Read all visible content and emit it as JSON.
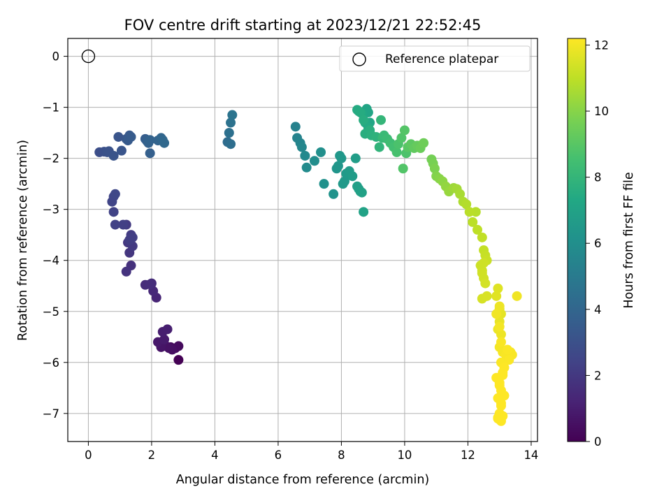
{
  "chart_data": {
    "type": "scatter",
    "title": "FOV centre drift starting at 2023/12/21 22:52:45",
    "xlabel": "Angular distance from reference (arcmin)",
    "ylabel": "Rotation from reference (arcmin)",
    "xlim": [
      -0.65,
      14.2
    ],
    "ylim": [
      -7.55,
      0.35
    ],
    "xticks": [
      0,
      2,
      4,
      6,
      8,
      10,
      12,
      14
    ],
    "yticks": [
      0,
      -1,
      -2,
      -3,
      -4,
      -5,
      -6,
      -7
    ],
    "xtick_labels": [
      "0",
      "2",
      "4",
      "6",
      "8",
      "10",
      "12",
      "14"
    ],
    "ytick_labels": [
      "0",
      "−1",
      "−2",
      "−3",
      "−4",
      "−5",
      "−6",
      "−7"
    ],
    "grid": true,
    "legend": {
      "position": "top-right",
      "entries": [
        "Reference platepar"
      ]
    },
    "reference_point": {
      "x": 0,
      "y": 0
    },
    "colorbar": {
      "label": "Hours from first FF file",
      "colormap": "viridis",
      "min": 0,
      "max": 12.2,
      "ticks": [
        0,
        2,
        4,
        6,
        8,
        10,
        12
      ],
      "tick_labels": [
        "0",
        "2",
        "4",
        "6",
        "8",
        "10",
        "12"
      ]
    },
    "series": [
      {
        "x": [
          2.85,
          2.6,
          2.75,
          2.45,
          2.3,
          2.2,
          2.4,
          2.35,
          2.5,
          2.85,
          2.65,
          2.55,
          2.3,
          2.15,
          2.05,
          2.0,
          1.8,
          1.95,
          1.35,
          1.2,
          1.3,
          1.25,
          1.4,
          1.2,
          1.35,
          1.3,
          1.4,
          1.1,
          0.85,
          0.8,
          0.75,
          0.8,
          0.85,
          0.35,
          0.5,
          0.6,
          0.65,
          0.8,
          0.95,
          1.2,
          1.3,
          1.25,
          1.35,
          1.05,
          1.8,
          1.85,
          1.9,
          1.95,
          2.2,
          2.3,
          2.35,
          2.4,
          1.95,
          4.4,
          4.5,
          4.45,
          4.5,
          4.55,
          6.55,
          6.6,
          6.7,
          6.75,
          6.85,
          6.9,
          7.15,
          7.35,
          7.45,
          7.75,
          7.85,
          7.9,
          7.95,
          8.0,
          8.05,
          8.1,
          8.15,
          8.25,
          8.35,
          8.45,
          8.5,
          8.55,
          8.6,
          8.65,
          8.7,
          8.8,
          8.85,
          8.9,
          8.55,
          8.65,
          8.75,
          8.85,
          8.5,
          8.6,
          8.7,
          8.75,
          8.95,
          8.9,
          9.1,
          9.2,
          9.25,
          9.3,
          9.35,
          9.45,
          9.55,
          9.65,
          9.75,
          9.8,
          9.9,
          10.0,
          10.1,
          10.2,
          10.3,
          10.4,
          10.5,
          10.6,
          10.05,
          9.95,
          10.85,
          10.9,
          10.95,
          11.0,
          11.1,
          11.2,
          11.3,
          11.4,
          11.55,
          11.65,
          11.75,
          11.85,
          11.95,
          12.05,
          12.15,
          12.3,
          12.45,
          12.25,
          12.5,
          12.55,
          12.6,
          12.4,
          12.45,
          12.5,
          12.55,
          12.45,
          12.6,
          12.5,
          12.45,
          12.95,
          12.9,
          13.0,
          13.05,
          13.0,
          12.95,
          13.05,
          13.55,
          13.0,
          13.1,
          13.2,
          13.05,
          13.15,
          12.9,
          13.0,
          13.25,
          13.35,
          13.4,
          13.05,
          13.15,
          13.3,
          13.1,
          13.0,
          12.95,
          13.05,
          13.0,
          12.95,
          13.1,
          13.05,
          13.0,
          12.95,
          13.1,
          13.05,
          13.0,
          12.9,
          13.0,
          13.05
        ],
        "y": [
          -5.95,
          -5.7,
          -5.72,
          -5.68,
          -5.65,
          -5.6,
          -5.55,
          -5.4,
          -5.35,
          -5.68,
          -5.75,
          -5.72,
          -5.7,
          -4.73,
          -4.6,
          -4.45,
          -4.48,
          -4.47,
          -4.1,
          -4.22,
          -3.85,
          -3.65,
          -3.72,
          -3.3,
          -3.5,
          -3.6,
          -3.55,
          -3.3,
          -3.3,
          -3.05,
          -2.85,
          -2.75,
          -2.7,
          -1.88,
          -1.87,
          -1.88,
          -1.86,
          -1.95,
          -1.58,
          -1.62,
          -1.55,
          -1.65,
          -1.58,
          -1.85,
          -1.62,
          -1.66,
          -1.7,
          -1.64,
          -1.65,
          -1.6,
          -1.64,
          -1.7,
          -1.9,
          -1.68,
          -1.72,
          -1.5,
          -1.3,
          -1.15,
          -1.38,
          -1.6,
          -1.7,
          -1.78,
          -1.95,
          -2.18,
          -2.05,
          -1.88,
          -2.5,
          -2.7,
          -2.2,
          -2.15,
          -1.95,
          -2.0,
          -2.5,
          -2.45,
          -2.3,
          -2.25,
          -2.35,
          -2.0,
          -2.55,
          -2.6,
          -2.65,
          -2.67,
          -3.05,
          -1.03,
          -1.1,
          -1.3,
          -1.08,
          -1.12,
          -1.3,
          -1.4,
          -1.05,
          -1.1,
          -1.25,
          -1.52,
          -1.55,
          -1.45,
          -1.58,
          -1.78,
          -1.25,
          -1.6,
          -1.55,
          -1.62,
          -1.7,
          -1.78,
          -1.88,
          -1.72,
          -1.6,
          -1.45,
          -1.78,
          -1.72,
          -1.8,
          -1.75,
          -1.8,
          -1.7,
          -1.9,
          -2.2,
          -2.02,
          -2.1,
          -2.2,
          -2.35,
          -2.4,
          -2.45,
          -2.55,
          -2.65,
          -2.58,
          -2.6,
          -2.7,
          -2.85,
          -2.9,
          -3.05,
          -3.25,
          -3.4,
          -3.55,
          -3.05,
          -3.8,
          -3.9,
          -4.0,
          -4.1,
          -4.2,
          -4.35,
          -4.45,
          -4.75,
          -4.7,
          -4.05,
          -4.25,
          -4.55,
          -4.7,
          -4.95,
          -5.05,
          -5.2,
          -5.35,
          -5.45,
          -4.7,
          -5.7,
          -5.8,
          -5.85,
          -6.0,
          -6.1,
          -6.3,
          -6.4,
          -5.75,
          -5.8,
          -5.85,
          -6.55,
          -6.65,
          -5.95,
          -6.2,
          -6.45,
          -6.7,
          -6.85,
          -7.0,
          -7.1,
          -7.05,
          -7.15,
          -7.12,
          -7.08,
          -6.25,
          -5.6,
          -5.3,
          -5.05,
          -4.9,
          -6.8
        ],
        "hours": [
          0.0,
          0.3,
          0.4,
          0.6,
          0.7,
          0.8,
          0.9,
          1.0,
          1.05,
          0.35,
          0.5,
          0.55,
          0.65,
          1.3,
          1.4,
          1.5,
          1.55,
          1.6,
          1.7,
          1.8,
          1.9,
          2.0,
          2.05,
          2.1,
          2.15,
          2.2,
          2.25,
          2.3,
          2.35,
          2.4,
          2.5,
          2.55,
          2.6,
          2.9,
          3.0,
          3.05,
          3.1,
          3.15,
          3.2,
          3.3,
          3.4,
          3.45,
          3.5,
          3.2,
          3.6,
          3.7,
          3.8,
          3.85,
          3.9,
          4.0,
          4.05,
          4.1,
          3.7,
          4.3,
          4.4,
          4.5,
          4.6,
          4.7,
          5.3,
          5.4,
          5.5,
          5.6,
          5.7,
          5.8,
          5.9,
          6.0,
          6.1,
          6.2,
          6.3,
          6.35,
          6.4,
          6.45,
          6.5,
          6.55,
          6.6,
          6.65,
          6.7,
          6.75,
          6.8,
          6.85,
          6.9,
          6.95,
          7.0,
          7.1,
          7.15,
          7.2,
          7.25,
          7.3,
          7.35,
          7.4,
          7.45,
          7.5,
          7.55,
          7.6,
          7.7,
          7.65,
          7.8,
          7.9,
          8.0,
          8.1,
          8.2,
          8.3,
          8.4,
          8.5,
          8.6,
          8.7,
          8.8,
          8.9,
          9.0,
          9.1,
          9.2,
          9.3,
          9.4,
          9.5,
          8.75,
          8.85,
          9.6,
          9.7,
          9.8,
          9.9,
          10.0,
          10.1,
          10.2,
          10.3,
          10.4,
          10.5,
          10.6,
          10.7,
          10.8,
          10.9,
          10.95,
          11.0,
          11.05,
          10.85,
          11.1,
          11.15,
          11.2,
          11.25,
          11.3,
          11.35,
          11.4,
          11.45,
          11.5,
          11.3,
          11.35,
          11.6,
          11.65,
          11.7,
          11.75,
          11.8,
          11.85,
          11.9,
          11.95,
          12.0,
          12.05,
          12.1,
          12.15,
          12.2,
          12.2,
          12.2,
          12.15,
          12.1,
          12.1,
          12.2,
          12.2,
          12.15,
          12.2,
          12.2,
          12.2,
          12.2,
          12.2,
          12.2,
          12.2,
          12.2,
          12.2,
          12.2,
          12.2,
          12.1,
          12.0,
          11.95,
          11.9,
          12.2
        ]
      }
    ]
  }
}
